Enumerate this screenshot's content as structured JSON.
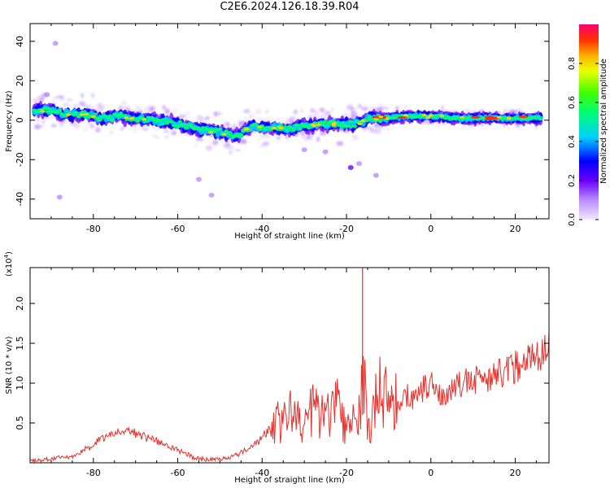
{
  "title": "C2E6.2024.126.18.39.R04",
  "chart_data": [
    {
      "type": "heatmap",
      "xlabel": "Height of straight line (km)",
      "ylabel": "Frequency (Hz)",
      "xlim": [
        -95,
        28
      ],
      "ylim": [
        -50,
        49
      ],
      "xticks": [
        -80,
        -60,
        -40,
        -20,
        0,
        20
      ],
      "xtick_labels": [
        "-80",
        "-60",
        "-40",
        "-20",
        "0",
        "20"
      ],
      "yticks": [
        -40,
        -20,
        0,
        20,
        40
      ],
      "ytick_labels": [
        "-40",
        "-20",
        "0",
        "20",
        "40"
      ],
      "colorbar": {
        "label": "Normalized spectral amplitude",
        "range": [
          0,
          1
        ],
        "ticks": [
          0.0,
          0.2,
          0.4,
          0.6,
          0.8
        ],
        "tick_labels": [
          "0.0",
          "0.2",
          "0.4",
          "0.6",
          "0.8"
        ]
      },
      "ridge": {
        "x": [
          -94,
          -90,
          -86,
          -82,
          -78,
          -74,
          -70,
          -66,
          -62,
          -58,
          -54,
          -50,
          -46,
          -42,
          -38,
          -34,
          -30,
          -26,
          -22,
          -18,
          -14,
          -10,
          -6,
          -2,
          2,
          6,
          10,
          14,
          18,
          22,
          26
        ],
        "y": [
          5,
          5,
          3,
          3,
          1,
          2,
          1,
          0,
          -1,
          -3,
          -5,
          -6,
          -8,
          -3,
          -4,
          -4,
          -3,
          -2,
          -2,
          -2,
          1,
          1,
          2,
          2,
          2,
          1,
          1,
          1,
          1,
          1,
          1
        ]
      },
      "outliers": {
        "x": [
          -89,
          -19,
          -17,
          -13,
          -25,
          -88,
          -91,
          -52,
          -55,
          -30
        ],
        "y": [
          39,
          -24,
          -22,
          -28,
          -16,
          -39,
          13,
          -38,
          -30,
          -15
        ]
      },
      "grid": false
    },
    {
      "type": "line",
      "xlabel": "Height of straight line (km)",
      "ylabel": "SNR (10 * v/v)",
      "multiplier_label": "(x10",
      "multiplier_exp": "4",
      "xlim": [
        -95,
        28
      ],
      "ylim": [
        0,
        2.45
      ],
      "xticks": [
        -80,
        -60,
        -40,
        -20,
        0,
        20
      ],
      "xtick_labels": [
        "-80",
        "-60",
        "-40",
        "-20",
        "0",
        "20"
      ],
      "yticks": [
        0.5,
        1.0,
        1.5,
        2.0
      ],
      "ytick_labels": [
        "0.5",
        "1.0",
        "1.5",
        "2.0"
      ],
      "series": [
        {
          "color": "#e8302b",
          "x": [
            -95,
            -90,
            -85,
            -80,
            -77,
            -74,
            -71,
            -68,
            -65,
            -62,
            -59,
            -56,
            -53,
            -50,
            -47,
            -44,
            -41,
            -38,
            -36,
            -34,
            -32,
            -30,
            -28,
            -26,
            -24,
            -22,
            -20,
            -18,
            -17,
            -16,
            -15,
            -14,
            -12,
            -10,
            -8,
            -6,
            -4,
            -2,
            0,
            2,
            4,
            6,
            8,
            10,
            12,
            14,
            16,
            18,
            20,
            22,
            24,
            26,
            28
          ],
          "y": [
            0.02,
            0.05,
            0.08,
            0.22,
            0.33,
            0.38,
            0.4,
            0.35,
            0.28,
            0.2,
            0.14,
            0.06,
            0.04,
            0.05,
            0.08,
            0.15,
            0.28,
            0.45,
            0.55,
            0.62,
            0.55,
            0.48,
            0.7,
            0.58,
            0.62,
            0.85,
            0.4,
            0.5,
            0.6,
            1.35,
            0.3,
            0.55,
            0.95,
            0.8,
            0.75,
            0.85,
            0.78,
            0.9,
            1.05,
            0.82,
            0.88,
            0.95,
            1.02,
            1.0,
            1.1,
            1.08,
            1.12,
            1.15,
            1.22,
            1.28,
            1.32,
            1.38,
            1.44
          ]
        }
      ],
      "spikes": {
        "x": [
          -16.2
        ],
        "y": [
          2.45
        ]
      },
      "grid": false
    }
  ]
}
